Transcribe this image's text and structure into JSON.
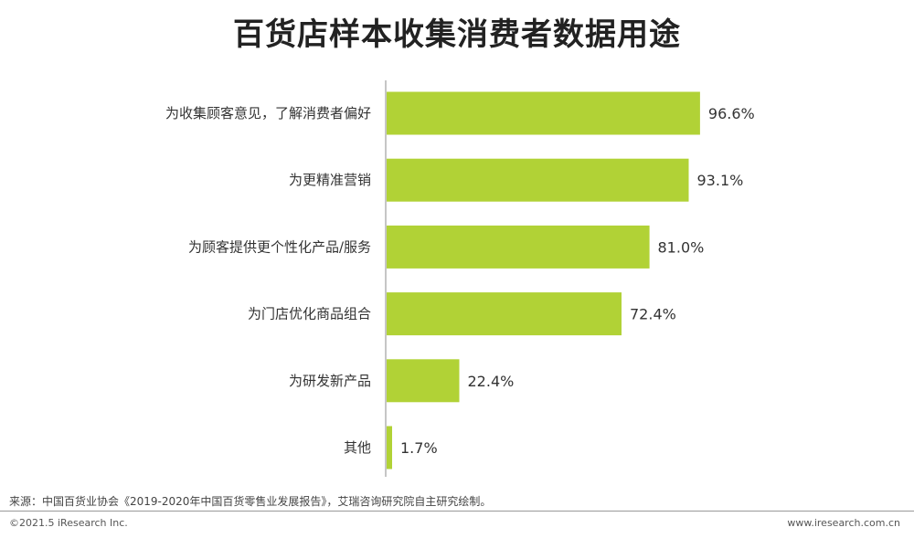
{
  "title": "百货店样本收集消费者数据用途",
  "chart_data": {
    "type": "bar",
    "orientation": "horizontal",
    "categories": [
      "为收集顾客意见，了解消费者偏好",
      "为更精准营销",
      "为顾客提供更个性化产品/服务",
      "为门店优化商品组合",
      "为研发新产品",
      "其他"
    ],
    "values": [
      96.6,
      93.1,
      81.0,
      72.4,
      22.4,
      1.7
    ],
    "value_labels": [
      "96.6%",
      "93.1%",
      "81.0%",
      "72.4%",
      "22.4%",
      "1.7%"
    ],
    "xlim": [
      0,
      100
    ],
    "grid": false,
    "legend": "none",
    "bar_color": "#b1d236"
  },
  "source": "来源：中国百货业协会《2019-2020年中国百货零售业发展报告》，艾瑞咨询研究院自主研究绘制。",
  "copyright": "©2021.5 iResearch Inc.",
  "website": "www.iresearch.com.cn"
}
